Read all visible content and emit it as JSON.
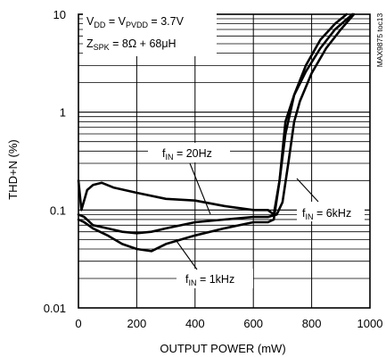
{
  "chart_data": {
    "type": "line",
    "xlabel": "OUTPUT POWER (mW)",
    "ylabel": "THD+N (%)",
    "xlim": [
      0,
      1000
    ],
    "ylim": [
      0.01,
      10
    ],
    "yscale": "log",
    "grid": true,
    "x_ticks": [
      "0",
      "200",
      "400",
      "600",
      "800",
      "1000"
    ],
    "y_ticks": [
      "0.01",
      "0.1",
      "1",
      "10"
    ],
    "conditions": {
      "line1": {
        "main": "V",
        "s1": "DD",
        "mid": " = V",
        "s2": "PVDD",
        "tail": " = 3.7V"
      },
      "line2": {
        "main": "Z",
        "s1": "SPK",
        "tail": " = 8Ω + 68μH"
      }
    },
    "side_label": "MAX9875 toc13",
    "series": [
      {
        "name": "fIN = 20Hz",
        "label": {
          "main": "f",
          "sub": "IN",
          "tail": " = 20Hz"
        },
        "x": [
          0,
          10,
          30,
          50,
          80,
          120,
          200,
          300,
          400,
          500,
          600,
          650,
          670,
          690,
          710,
          740,
          780,
          830,
          880,
          920
        ],
        "y": [
          0.2,
          0.1,
          0.16,
          0.18,
          0.19,
          0.17,
          0.15,
          0.13,
          0.125,
          0.11,
          0.1,
          0.1,
          0.09,
          0.2,
          0.8,
          1.5,
          3.0,
          5.5,
          8.0,
          10.0
        ]
      },
      {
        "name": "fIN = 6kHz",
        "label": {
          "main": "f",
          "sub": "IN",
          "tail": " = 6kHz"
        },
        "x": [
          0,
          20,
          50,
          100,
          150,
          200,
          250,
          300,
          400,
          500,
          600,
          650,
          680,
          700,
          720,
          740,
          760,
          800,
          850,
          900,
          945
        ],
        "y": [
          0.09,
          0.085,
          0.07,
          0.065,
          0.06,
          0.058,
          0.06,
          0.065,
          0.075,
          0.08,
          0.085,
          0.085,
          0.09,
          0.12,
          0.3,
          0.8,
          1.3,
          2.5,
          4.5,
          7.0,
          10.0
        ]
      },
      {
        "name": "fIN = 1kHz",
        "label": {
          "main": "f",
          "sub": "IN",
          "tail": " = 1kHz"
        },
        "x": [
          0,
          20,
          50,
          100,
          150,
          200,
          250,
          300,
          400,
          500,
          600,
          650,
          670,
          690,
          710,
          740,
          780,
          830,
          880,
          940
        ],
        "y": [
          0.08,
          0.075,
          0.065,
          0.055,
          0.045,
          0.04,
          0.038,
          0.045,
          0.055,
          0.065,
          0.075,
          0.075,
          0.08,
          0.2,
          0.6,
          1.5,
          2.6,
          4.5,
          7.0,
          10.0
        ]
      }
    ]
  }
}
